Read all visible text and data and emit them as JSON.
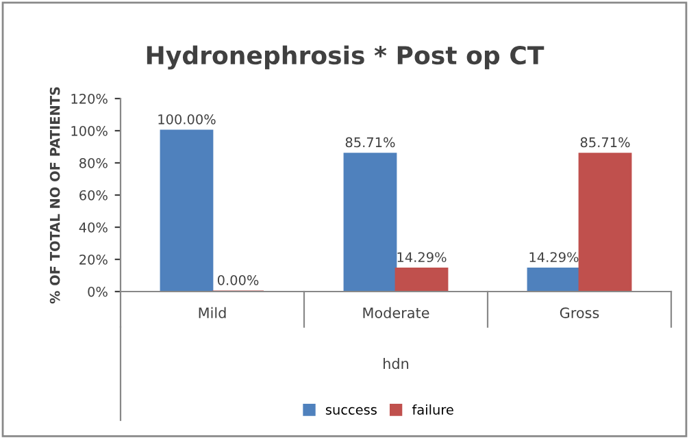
{
  "chart_data": {
    "type": "bar",
    "title": "Hydronephrosis * Post op CT",
    "xlabel": "hdn",
    "ylabel": "% OF TOTAL NO OF PATIENTS",
    "categories": [
      "Mild",
      "Moderate",
      "Gross"
    ],
    "series": [
      {
        "name": "success",
        "color": "#4f81bd",
        "values": [
          100,
          85.71,
          14.29
        ],
        "value_labels": [
          "100.00%",
          "85.71%",
          "14.29%"
        ]
      },
      {
        "name": "failure",
        "color": "#c0504d",
        "values": [
          0,
          14.29,
          85.71
        ],
        "value_labels": [
          "0.00%",
          "14.29%",
          "85.71%"
        ]
      }
    ],
    "ylim": [
      0,
      120
    ],
    "yticks": [
      {
        "value": 0,
        "label": "0%"
      },
      {
        "value": 20,
        "label": "20%"
      },
      {
        "value": 40,
        "label": "40%"
      },
      {
        "value": 60,
        "label": "60%"
      },
      {
        "value": 80,
        "label": "80%"
      },
      {
        "value": 100,
        "label": "100%"
      },
      {
        "value": 120,
        "label": "120%"
      }
    ],
    "grid": false,
    "legend": "bottom"
  }
}
